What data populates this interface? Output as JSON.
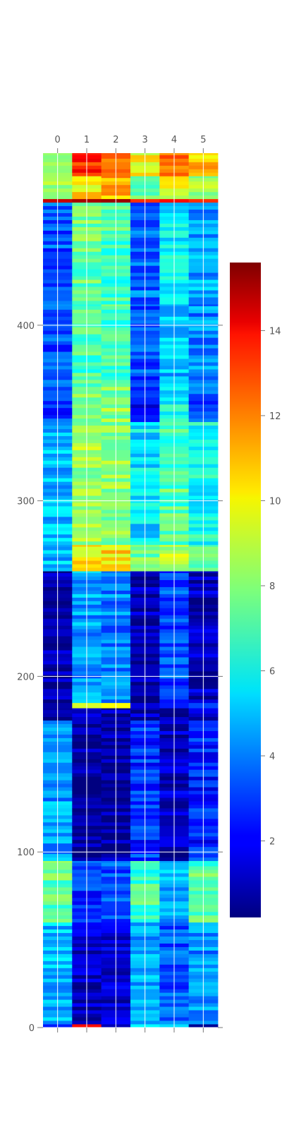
{
  "chart_data": {
    "type": "heatmap",
    "title": "",
    "xlabel": "",
    "ylabel": "",
    "columns": [
      0,
      1,
      2,
      3,
      4,
      5
    ],
    "x_tick_labels": [
      "0",
      "1",
      "2",
      "3",
      "4",
      "5"
    ],
    "y_ticks": [
      0,
      100,
      200,
      300,
      400
    ],
    "y_tick_labels": [
      "0",
      "100",
      "200",
      "300",
      "400"
    ],
    "ylim": [
      0,
      498
    ],
    "colormap": "jet",
    "colorbar": {
      "range": [
        0.2,
        15.6
      ],
      "ticks": [
        2,
        4,
        6,
        8,
        10,
        12,
        14
      ],
      "tick_labels": [
        "2",
        "4",
        "6",
        "8",
        "10",
        "12",
        "14"
      ]
    },
    "grid": true,
    "row_bands": [
      {
        "y0": 0,
        "y1": 2,
        "values": [
          2.5,
          13.5,
          1.0,
          6.0,
          5.5,
          0.5
        ]
      },
      {
        "y0": 2,
        "y1": 60,
        "values": [
          5.0,
          1.3,
          1.4,
          4.6,
          3.4,
          4.2
        ]
      },
      {
        "y0": 60,
        "y1": 95,
        "values": [
          7.4,
          3.0,
          3.2,
          7.0,
          4.6,
          7.2
        ]
      },
      {
        "y0": 95,
        "y1": 175,
        "values": [
          4.5,
          0.6,
          0.6,
          2.8,
          1.2,
          2.6
        ]
      },
      {
        "y0": 175,
        "y1": 182,
        "values": [
          0.8,
          0.7,
          0.7,
          0.8,
          0.8,
          1.6
        ]
      },
      {
        "y0": 182,
        "y1": 185,
        "values": [
          0.8,
          9.2,
          9.8,
          1.6,
          2.5,
          3.2
        ]
      },
      {
        "y0": 185,
        "y1": 260,
        "values": [
          0.8,
          4.5,
          4.0,
          0.9,
          3.3,
          1.2
        ]
      },
      {
        "y0": 260,
        "y1": 275,
        "values": [
          5.0,
          9.8,
          10.2,
          7.6,
          8.6,
          7.6
        ]
      },
      {
        "y0": 275,
        "y1": 345,
        "values": [
          5.0,
          8.4,
          8.2,
          5.6,
          7.2,
          6.2
        ]
      },
      {
        "y0": 345,
        "y1": 365,
        "values": [
          3.0,
          8.4,
          8.0,
          2.2,
          6.0,
          3.2
        ]
      },
      {
        "y0": 365,
        "y1": 412,
        "values": [
          3.4,
          7.0,
          7.0,
          3.2,
          5.0,
          4.2
        ]
      },
      {
        "y0": 412,
        "y1": 470,
        "values": [
          3.4,
          7.6,
          7.0,
          3.8,
          5.8,
          4.6
        ]
      },
      {
        "y0": 470,
        "y1": 472,
        "values": [
          14.5,
          15.0,
          15.2,
          13.0,
          13.5,
          13.0
        ]
      },
      {
        "y0": 472,
        "y1": 485,
        "values": [
          8.0,
          10.0,
          11.0,
          7.6,
          9.4,
          8.6
        ]
      },
      {
        "y0": 485,
        "y1": 498,
        "values": [
          7.6,
          13.2,
          12.4,
          9.8,
          11.8,
          10.6
        ]
      }
    ]
  }
}
